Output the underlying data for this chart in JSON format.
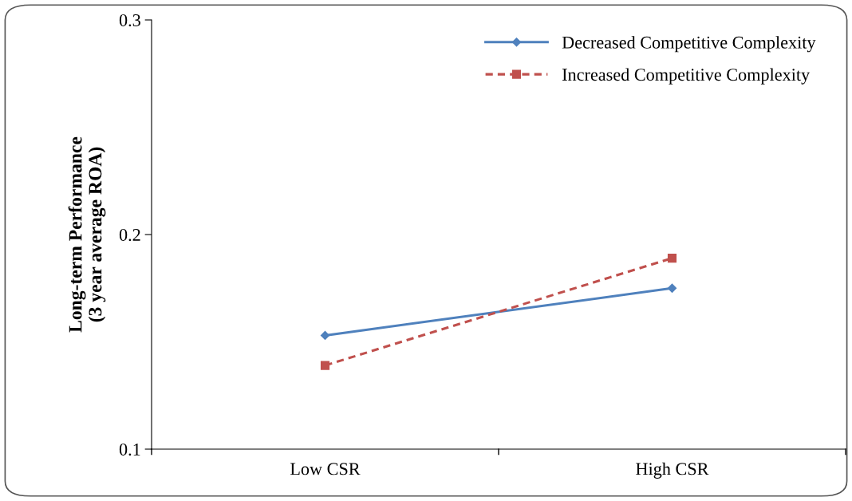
{
  "chart_data": {
    "type": "line",
    "ylabel": "Long-term Performance\n(3 year average ROA)",
    "categories": [
      "Low CSR",
      "High CSR"
    ],
    "series": [
      {
        "name": "Decreased Competitive Complexity",
        "color": "#4f81bd",
        "values": [
          0.153,
          0.175
        ],
        "marker": "diamond",
        "line_style": "solid"
      },
      {
        "name": "Increased Competitive Complexity",
        "color": "#c0504d",
        "values": [
          0.139,
          0.189
        ],
        "marker": "square",
        "line_style": "dashed"
      }
    ],
    "ylim": [
      0.1,
      0.3
    ],
    "yticks": [
      0.1,
      0.2,
      0.3
    ],
    "grid": false,
    "legend": "top right"
  }
}
